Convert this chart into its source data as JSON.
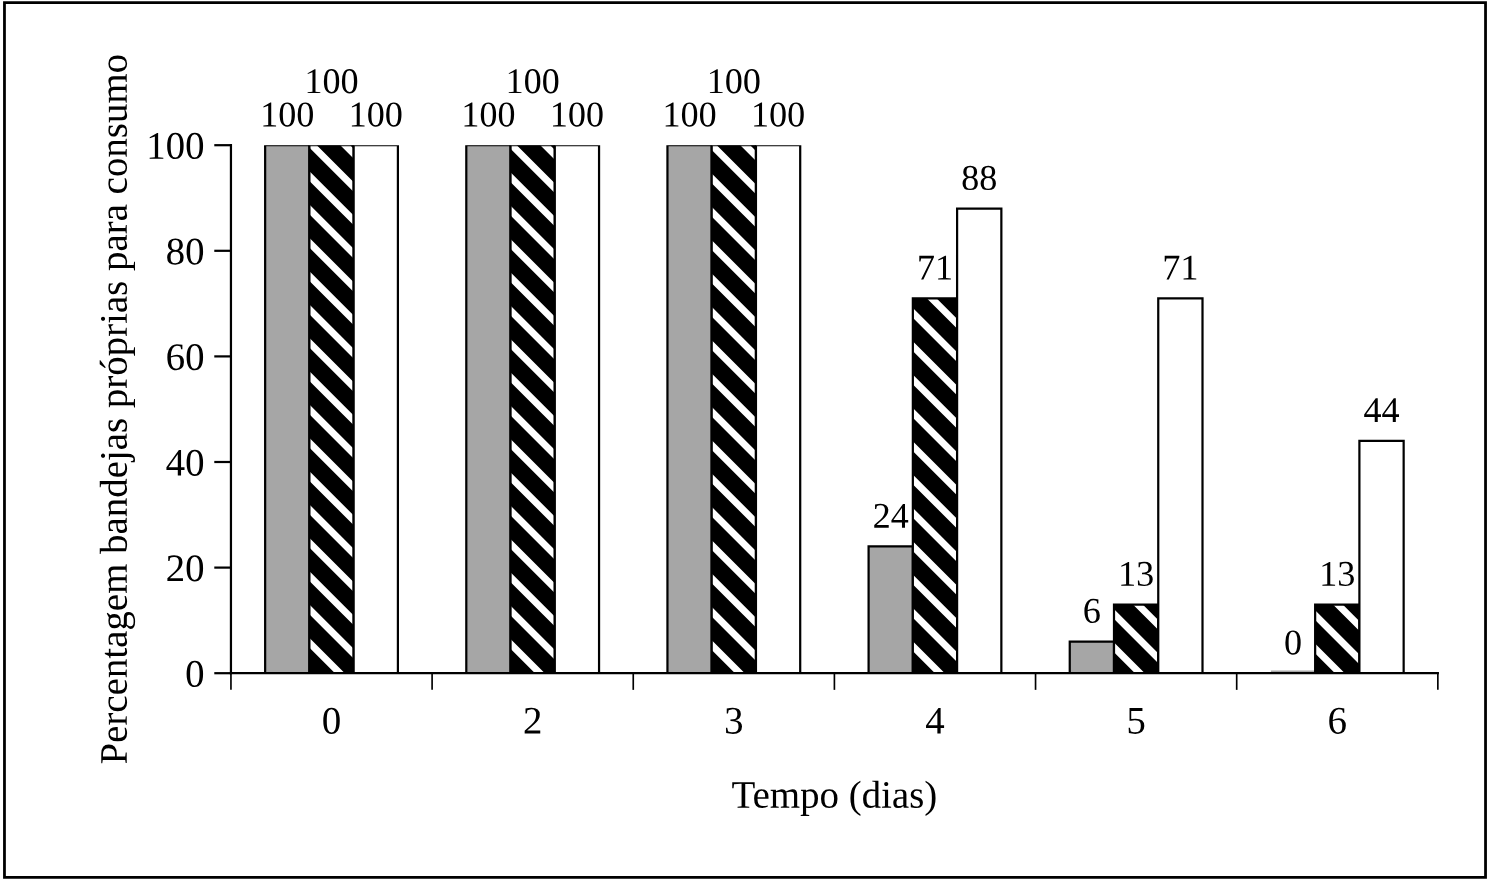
{
  "chart_data": {
    "type": "bar",
    "xlabel": "Tempo (dias)",
    "ylabel": "Percentagem bandejas próprias para consumo",
    "categories": [
      "0",
      "2",
      "3",
      "4",
      "5",
      "6"
    ],
    "series": [
      {
        "color": "#a6a6a6",
        "values": [
          100,
          100,
          100,
          24,
          6,
          0
        ]
      },
      {
        "color": "#000000",
        "values": [
          100,
          100,
          100,
          71,
          13,
          13
        ]
      },
      {
        "color": "#ffffff",
        "values": [
          100,
          100,
          100,
          88,
          71,
          44
        ]
      }
    ],
    "ylim": [
      0,
      100
    ],
    "yticks": [
      0,
      20,
      40,
      60,
      80,
      100
    ],
    "data_labels": true,
    "grid": false,
    "legend": false
  }
}
